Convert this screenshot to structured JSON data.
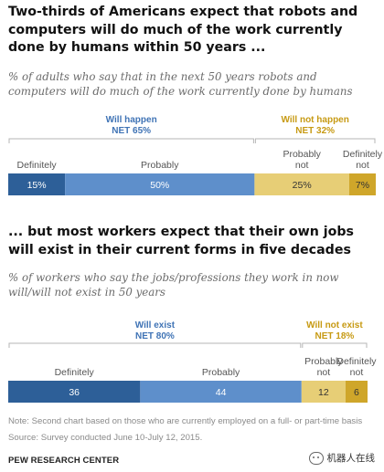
{
  "headline_1": "Two-thirds of Americans expect that robots and computers will do much of the work currently done by humans within 50 years ...",
  "subtitle_1": "% of adults who say that in the next 50 years robots and computers will do much of the work currently done by humans",
  "headline_2": "... but most workers expect that their own jobs will exist in their current forms in five decades",
  "subtitle_2": "% of workers who say the jobs/professions they work in now will/will not exist in 50 years",
  "note_line_1": "Note: Second chart based on those who are currently employed on a full- or part-time basis",
  "note_line_2": "Source: Survey conducted June 10-July 12, 2015.",
  "footer": "PEW RESEARCH CENTER",
  "watermark_text": "机器人在线",
  "colors": {
    "definitely_yes": "#2d5f98",
    "probably_yes": "#5e8fcb",
    "probably_no": "#e7ce76",
    "definitely_no": "#cfa62a",
    "group_yes_text": "#3f73b5",
    "group_no_text": "#c79a13"
  },
  "chart_data": [
    {
      "type": "bar",
      "orientation": "horizontal-stacked",
      "categories": [
        "Definitely",
        "Probably",
        "Probably not",
        "Definitely not"
      ],
      "values": [
        15,
        50,
        25,
        7
      ],
      "value_labels": [
        "15%",
        "50%",
        "25%",
        "7%"
      ],
      "category_labels": [
        [
          "Definitely"
        ],
        [
          "Probably"
        ],
        [
          "Probably",
          "not"
        ],
        [
          "Definitely",
          "not"
        ]
      ],
      "groups": [
        {
          "name": "Will happen",
          "net": "NET 65%",
          "members": [
            0,
            1
          ]
        },
        {
          "name": "Will not happen",
          "net": "NET 32%",
          "members": [
            2,
            3
          ]
        }
      ]
    },
    {
      "type": "bar",
      "orientation": "horizontal-stacked",
      "categories": [
        "Definitely",
        "Probably",
        "Probably not",
        "Definitely not"
      ],
      "values": [
        36,
        44,
        12,
        6
      ],
      "value_labels": [
        "36",
        "44",
        "12",
        "6"
      ],
      "category_labels": [
        [
          "Definitely"
        ],
        [
          "Probably"
        ],
        [
          "Probably",
          "not"
        ],
        [
          "Definitely",
          "not"
        ]
      ],
      "groups": [
        {
          "name": "Will exist",
          "net": "NET 80%",
          "members": [
            0,
            1
          ]
        },
        {
          "name": "Will not exist",
          "net": "NET 18%",
          "members": [
            2,
            3
          ]
        }
      ]
    }
  ]
}
